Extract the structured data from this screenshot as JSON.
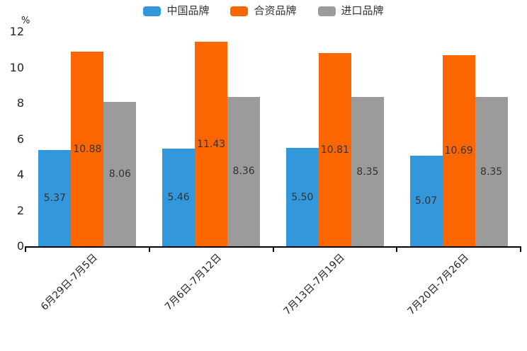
{
  "chart_data": {
    "type": "bar",
    "title": "",
    "unit_label": "%",
    "categories": [
      "6月29日-7月5日",
      "7月6日-7月12日",
      "7月13日-7月19日",
      "7月20日-7月26日"
    ],
    "series": [
      {
        "name": "中国品牌",
        "color": "#3398DB",
        "values": [
          5.37,
          5.46,
          5.5,
          5.07
        ]
      },
      {
        "name": "合资品牌",
        "color": "#FC6600",
        "values": [
          10.88,
          11.43,
          10.81,
          10.69
        ]
      },
      {
        "name": "进口品牌",
        "color": "#9B9B9B",
        "values": [
          8.06,
          8.36,
          8.35,
          8.35
        ]
      }
    ],
    "ylim": [
      0,
      12
    ],
    "yticks": [
      0,
      2,
      4,
      6,
      8,
      10,
      12
    ],
    "legend_position": "top-center",
    "grid": false,
    "value_labels": "inside-center",
    "value_label_decimals": 2,
    "xtick_rotation": -45,
    "colors": {
      "axis": "#000000",
      "text": "#262626",
      "value_label_text": "#333333"
    }
  }
}
